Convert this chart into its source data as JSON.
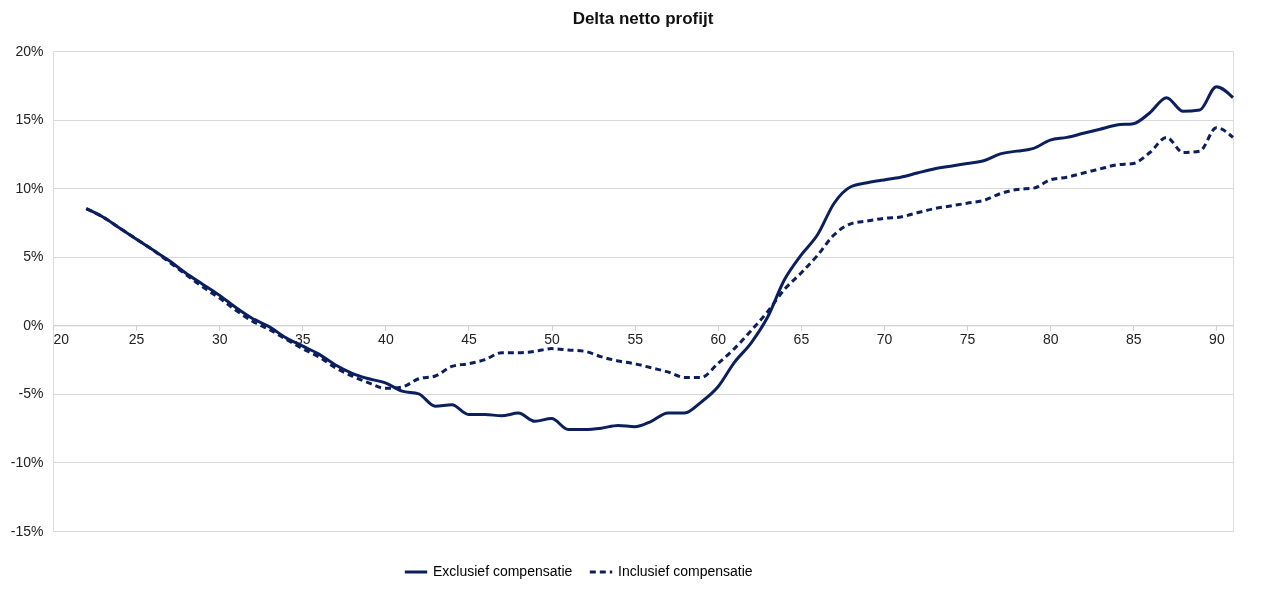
{
  "chart_data": {
    "type": "line",
    "title": "Delta netto profijt",
    "x": [
      22,
      23,
      24,
      25,
      26,
      27,
      28,
      29,
      30,
      31,
      32,
      33,
      34,
      35,
      36,
      37,
      38,
      39,
      40,
      41,
      42,
      43,
      44,
      45,
      46,
      47,
      48,
      49,
      50,
      51,
      52,
      53,
      54,
      55,
      56,
      57,
      58,
      59,
      60,
      61,
      62,
      63,
      64,
      65,
      66,
      67,
      68,
      69,
      70,
      71,
      72,
      73,
      74,
      75,
      76,
      77,
      78,
      79,
      80,
      81,
      82,
      83,
      84,
      85,
      86,
      87,
      88,
      89,
      90,
      91
    ],
    "series": [
      {
        "name": "Exclusief compensatie",
        "color": "#0b1f5e",
        "line_style": "solid",
        "values": [
          8.5,
          7.9,
          7.1,
          6.3,
          5.5,
          4.7,
          3.8,
          3.0,
          2.2,
          1.3,
          0.5,
          -0.1,
          -0.9,
          -1.5,
          -2.1,
          -2.9,
          -3.5,
          -3.9,
          -4.2,
          -4.8,
          -5.0,
          -5.9,
          -5.8,
          -6.5,
          -6.5,
          -6.6,
          -6.4,
          -7.0,
          -6.8,
          -7.6,
          -7.6,
          -7.5,
          -7.3,
          -7.4,
          -7.0,
          -6.4,
          -6.4,
          -5.6,
          -4.5,
          -2.7,
          -1.3,
          0.6,
          3.3,
          5.1,
          6.6,
          8.9,
          10.1,
          10.4,
          10.6,
          10.8,
          11.1,
          11.4,
          11.6,
          11.8,
          12.0,
          12.5,
          12.7,
          12.9,
          13.5,
          13.7,
          14.0,
          14.3,
          14.6,
          14.7,
          15.5,
          16.6,
          15.6,
          15.7,
          17.4,
          16.6
        ]
      },
      {
        "name": "Inclusief compensatie",
        "color": "#0b1f5e",
        "line_style": "dashed",
        "values": [
          8.5,
          7.9,
          7.1,
          6.3,
          5.5,
          4.6,
          3.7,
          2.8,
          2.0,
          1.1,
          0.3,
          -0.3,
          -1.0,
          -1.7,
          -2.3,
          -3.1,
          -3.7,
          -4.2,
          -4.6,
          -4.5,
          -3.9,
          -3.7,
          -3.0,
          -2.8,
          -2.5,
          -2.0,
          -2.0,
          -1.9,
          -1.7,
          -1.8,
          -1.9,
          -2.3,
          -2.6,
          -2.8,
          -3.1,
          -3.4,
          -3.8,
          -3.8,
          -2.8,
          -1.7,
          -0.4,
          1.0,
          2.6,
          3.8,
          5.1,
          6.6,
          7.4,
          7.6,
          7.8,
          7.9,
          8.2,
          8.5,
          8.7,
          8.9,
          9.1,
          9.6,
          9.9,
          10.0,
          10.6,
          10.8,
          11.1,
          11.4,
          11.7,
          11.8,
          12.6,
          13.7,
          12.6,
          12.7,
          14.4,
          13.7
        ]
      }
    ],
    "xlim": [
      20,
      91
    ],
    "xticks": [
      20,
      25,
      30,
      35,
      40,
      45,
      50,
      55,
      60,
      65,
      70,
      75,
      80,
      85,
      90
    ],
    "ylim": [
      -15,
      20
    ],
    "yticks": [
      {
        "value": -15,
        "label": "-15%"
      },
      {
        "value": -10,
        "label": "-10%"
      },
      {
        "value": -5,
        "label": "-5%"
      },
      {
        "value": 0,
        "label": "0%"
      },
      {
        "value": 5,
        "label": "5%"
      },
      {
        "value": 10,
        "label": "10%"
      },
      {
        "value": 15,
        "label": "15%"
      },
      {
        "value": 20,
        "label": "20%"
      }
    ],
    "grid": "y",
    "legend": "bottom"
  }
}
